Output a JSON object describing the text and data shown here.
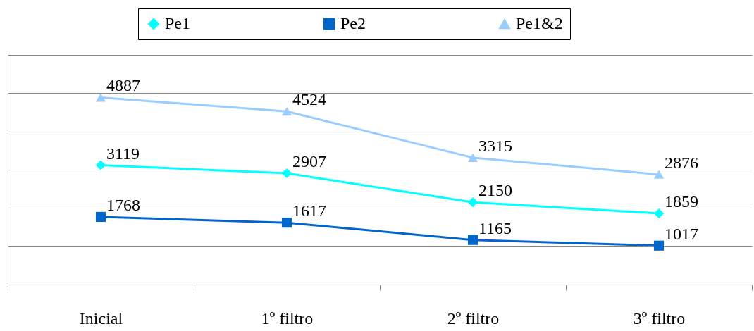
{
  "chart_data": {
    "type": "line",
    "categories": [
      "Inicial",
      "1º filtro",
      "2º filtro",
      "3º filtro"
    ],
    "series": [
      {
        "name": "Pe1",
        "color": "#00ffff",
        "marker": "diamond",
        "values": [
          3119,
          2907,
          2150,
          1859
        ]
      },
      {
        "name": "Pe2",
        "color": "#0066cc",
        "marker": "square",
        "values": [
          1768,
          1617,
          1165,
          1017
        ]
      },
      {
        "name": "Pe1&2",
        "color": "#99ccff",
        "marker": "triangle",
        "values": [
          4887,
          4524,
          3315,
          2876
        ]
      }
    ],
    "ylim": [
      0,
      6000
    ],
    "yticks": [
      {
        "value": 0,
        "label": null
      },
      {
        "value": 1000,
        "label": null
      },
      {
        "value": 2000,
        "label": null
      },
      {
        "value": 3000,
        "label": null
      },
      {
        "value": 4000,
        "label": null
      },
      {
        "value": 5000,
        "label": null
      },
      {
        "value": 6000,
        "label": null
      }
    ],
    "tick_labels": "x",
    "grid": "y",
    "legend": "top",
    "data_labels": true
  }
}
